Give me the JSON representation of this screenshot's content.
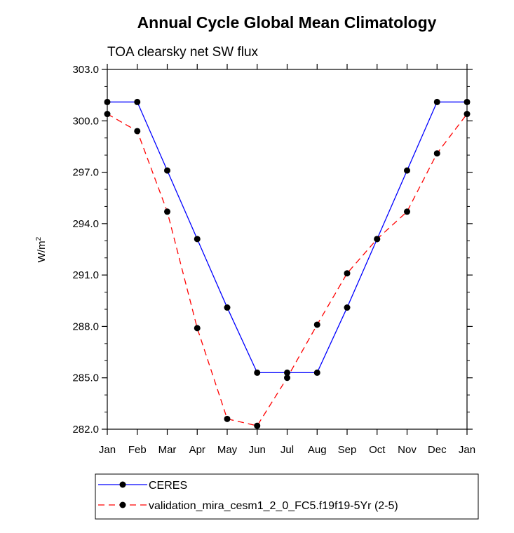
{
  "chart_data": {
    "type": "line",
    "title": "Annual Cycle Global Mean Climatology",
    "subtitle": "TOA clearsky net SW flux",
    "ylabel": "W/m",
    "ylabel_sup": "2",
    "ylim": [
      282.0,
      303.0
    ],
    "yticks": [
      "303.0",
      "300.0",
      "297.0",
      "294.0",
      "291.0",
      "288.0",
      "285.0",
      "282.0"
    ],
    "categories": [
      "Jan",
      "Feb",
      "Mar",
      "Apr",
      "May",
      "Jun",
      "Jul",
      "Aug",
      "Sep",
      "Oct",
      "Nov",
      "Dec",
      "Jan"
    ],
    "series": [
      {
        "name": "CERES",
        "color": "#0000ff",
        "dash": "solid",
        "values": [
          301.1,
          301.1,
          297.1,
          293.1,
          289.1,
          285.3,
          285.3,
          285.3,
          289.1,
          293.1,
          297.1,
          301.1,
          301.1
        ]
      },
      {
        "name": "validation_mira_cesm1_2_0_FC5.f19f19-5Yr (2-5)",
        "color": "#ff0000",
        "dash": "dashed",
        "values": [
          300.4,
          299.4,
          294.7,
          287.9,
          282.6,
          282.2,
          285.0,
          288.1,
          291.1,
          293.1,
          294.7,
          298.1,
          300.4
        ]
      }
    ],
    "legend_position": "bottom",
    "grid": false
  }
}
